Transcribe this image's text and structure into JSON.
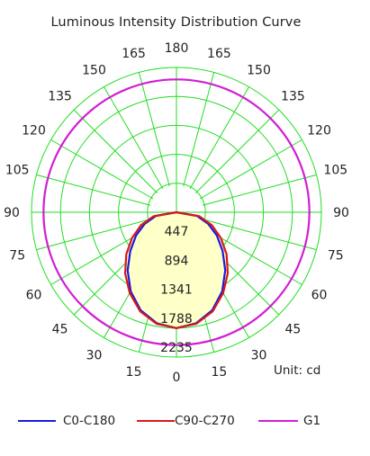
{
  "chart_data": {
    "type": "polar",
    "title": "Luminous Intensity Distribution Curve",
    "unit_label": "Unit: cd",
    "radial_ticks": [
      447,
      894,
      1341,
      1788,
      2235
    ],
    "radial_max": 2235,
    "angle_tick_labels": [
      {
        "angle": 0,
        "label": "0"
      },
      {
        "angle": 15,
        "label": "15"
      },
      {
        "angle": -15,
        "label": "15"
      },
      {
        "angle": 30,
        "label": "30"
      },
      {
        "angle": -30,
        "label": "30"
      },
      {
        "angle": 45,
        "label": "45"
      },
      {
        "angle": -45,
        "label": "45"
      },
      {
        "angle": 60,
        "label": "60"
      },
      {
        "angle": -60,
        "label": "60"
      },
      {
        "angle": 75,
        "label": "75"
      },
      {
        "angle": -75,
        "label": "75"
      },
      {
        "angle": 90,
        "label": "90"
      },
      {
        "angle": -90,
        "label": "90"
      },
      {
        "angle": 105,
        "label": "105"
      },
      {
        "angle": -105,
        "label": "105"
      },
      {
        "angle": 120,
        "label": "120"
      },
      {
        "angle": -120,
        "label": "120"
      },
      {
        "angle": 135,
        "label": "135"
      },
      {
        "angle": -135,
        "label": "135"
      },
      {
        "angle": 150,
        "label": "150"
      },
      {
        "angle": -150,
        "label": "150"
      },
      {
        "angle": 165,
        "label": "165"
      },
      {
        "angle": -165,
        "label": "165"
      },
      {
        "angle": 180,
        "label": "180"
      }
    ],
    "series": [
      {
        "name": "C0-C180",
        "color": "#1a1adf",
        "angles": [
          0,
          10,
          20,
          30,
          40,
          50,
          60,
          70,
          80,
          90
        ],
        "values": [
          1788,
          1740,
          1610,
          1410,
          1170,
          930,
          720,
          520,
          320,
          0
        ]
      },
      {
        "name": "C90-C270",
        "color": "#d81818",
        "angles": [
          0,
          10,
          20,
          30,
          40,
          50,
          60,
          70,
          80,
          90
        ],
        "values": [
          1788,
          1750,
          1630,
          1440,
          1230,
          1010,
          790,
          580,
          360,
          0
        ]
      },
      {
        "name": "G1",
        "color": "#d21ed2",
        "type": "circle",
        "value": 2050
      }
    ],
    "grid": true,
    "legend_position": "bottom"
  },
  "colors": {
    "grid": "#22dd22",
    "fill": "#ffffc8"
  }
}
